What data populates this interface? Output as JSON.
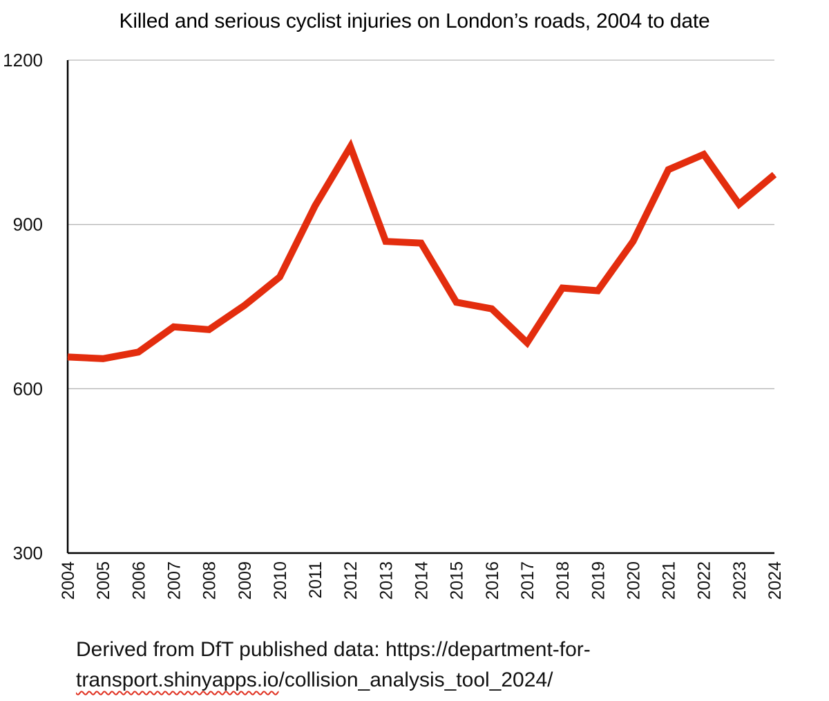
{
  "chart_data": {
    "type": "line",
    "title": "Killed and serious cyclist injuries on London’s roads, 2004 to date",
    "xlabel": "",
    "ylabel": "",
    "x": [
      "2004",
      "2005",
      "2006",
      "2007",
      "2008",
      "2009",
      "2010",
      "2011",
      "2012",
      "2013",
      "2014",
      "2015",
      "2016",
      "2017",
      "2018",
      "2019",
      "2020",
      "2021",
      "2022",
      "2023",
      "2024"
    ],
    "series": [
      {
        "name": "Killed and serious cyclist injuries",
        "values": [
          658,
          655,
          667,
          713,
          708,
          752,
          804,
          934,
          1042,
          869,
          866,
          758,
          746,
          684,
          784,
          779,
          869,
          1000,
          1028,
          937,
          991
        ]
      }
    ],
    "yticks": [
      "1200",
      "900",
      "600",
      "300"
    ],
    "ytick_values": [
      1200,
      900,
      600,
      300
    ],
    "ylim": [
      300,
      1200
    ],
    "grid": true,
    "line_color": "#e32d0e"
  },
  "source": {
    "line1": "Derived from DfT published data: https://department-for-",
    "line2_underlined": "transport.shinyapps.io",
    "line2_rest": "/collision_analysis_tool_2024/"
  }
}
